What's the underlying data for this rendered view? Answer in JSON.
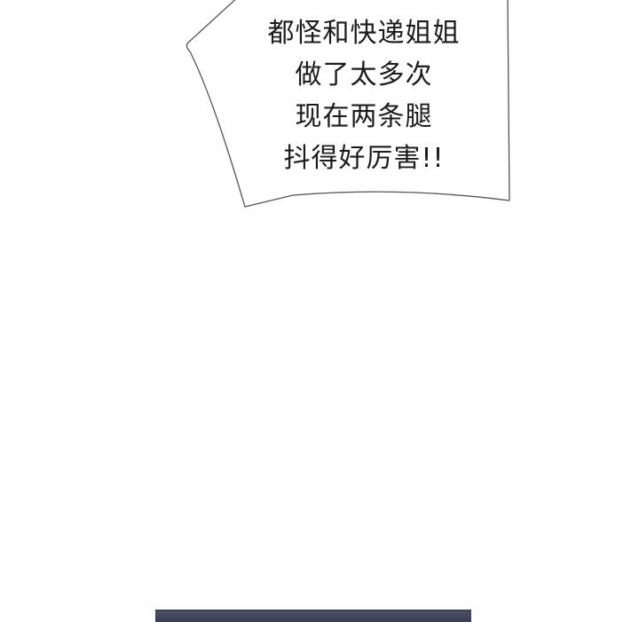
{
  "speech_bubble": {
    "lines": [
      "都怪和快递姐姐",
      "做了太多次",
      "现在两条腿",
      "抖得好厉害!!"
    ]
  },
  "colors": {
    "background": "#ffffff",
    "bubble_outline": "#555555",
    "text": "#1c1c1c",
    "next_panel": "#414559"
  }
}
